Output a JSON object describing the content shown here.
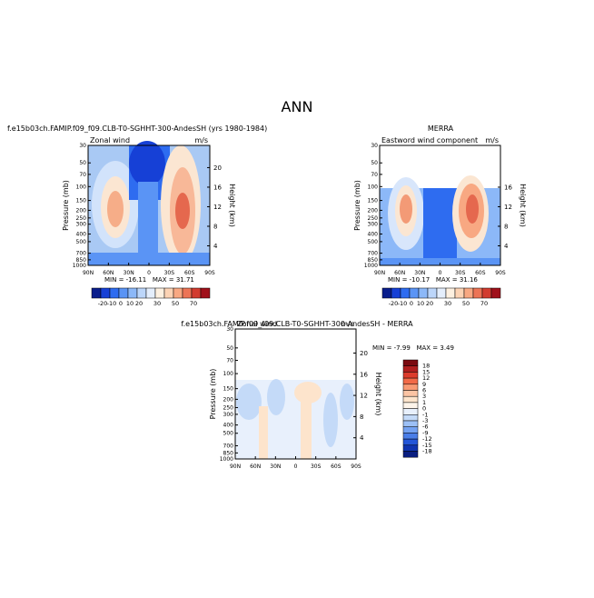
{
  "title": "ANN",
  "panels": [
    {
      "title": "f.e15b03ch.FAMIP.f09_f09.CLB-T0-SGHHT-300-AndesSH (yrs 1980-1984)",
      "left_label": "Zonal wind",
      "right_label": "m/s",
      "y_label": "Pressure (mb)",
      "y2_label": "Height (km)",
      "x_ticks": [
        "90N",
        "60N",
        "30N",
        "0",
        "30S",
        "60S",
        "90S"
      ],
      "p_ticks": [
        30,
        50,
        70,
        100,
        150,
        200,
        250,
        300,
        400,
        500,
        700,
        850,
        1000
      ],
      "h_ticks": [
        4,
        8,
        12,
        16,
        20
      ],
      "min_max": "MIN = -16.11   MAX = 31.71",
      "colorbar": [
        "-20",
        "-10",
        "0",
        "10",
        "20",
        "30",
        "50",
        "70"
      ]
    },
    {
      "title": "MERRA",
      "left_label": "Eastword wind component",
      "right_label": "m/s",
      "y_label": "Pressure (mb)",
      "y2_label": "Height (km)",
      "x_ticks": [
        "90N",
        "60N",
        "30N",
        "0",
        "30S",
        "60S",
        "90S"
      ],
      "p_ticks": [
        30,
        50,
        70,
        100,
        150,
        200,
        250,
        300,
        400,
        500,
        700,
        850,
        1000
      ],
      "h_ticks": [
        4,
        8,
        12,
        16
      ],
      "min_max": "MIN = -10.17   MAX = 31.16",
      "colorbar": [
        "-20",
        "-10",
        "0",
        "10",
        "20",
        "30",
        "50",
        "70"
      ]
    },
    {
      "title": "f.e15b03ch.FAMIP.f09_f09.CLB-T0-SGHHT-300-AndesSH - MERRA",
      "left_label": "Zonal wind",
      "right_label": "m/s",
      "y_label": "Pressure (mb)",
      "y2_label": "Height (km)",
      "x_ticks": [
        "90N",
        "60N",
        "30N",
        "0",
        "30S",
        "60S",
        "90S"
      ],
      "p_ticks": [
        30,
        50,
        70,
        100,
        150,
        200,
        250,
        300,
        400,
        500,
        700,
        850,
        1000
      ],
      "h_ticks": [
        4,
        8,
        12,
        16,
        20
      ],
      "min_max": "MIN = -7.99   MAX = 3.49",
      "colorbar": [
        "18",
        "15",
        "12",
        "9",
        "6",
        "3",
        "1",
        "0",
        "-1",
        "-3",
        "-6",
        "-9",
        "-12",
        "-15",
        "-18"
      ]
    }
  ]
}
